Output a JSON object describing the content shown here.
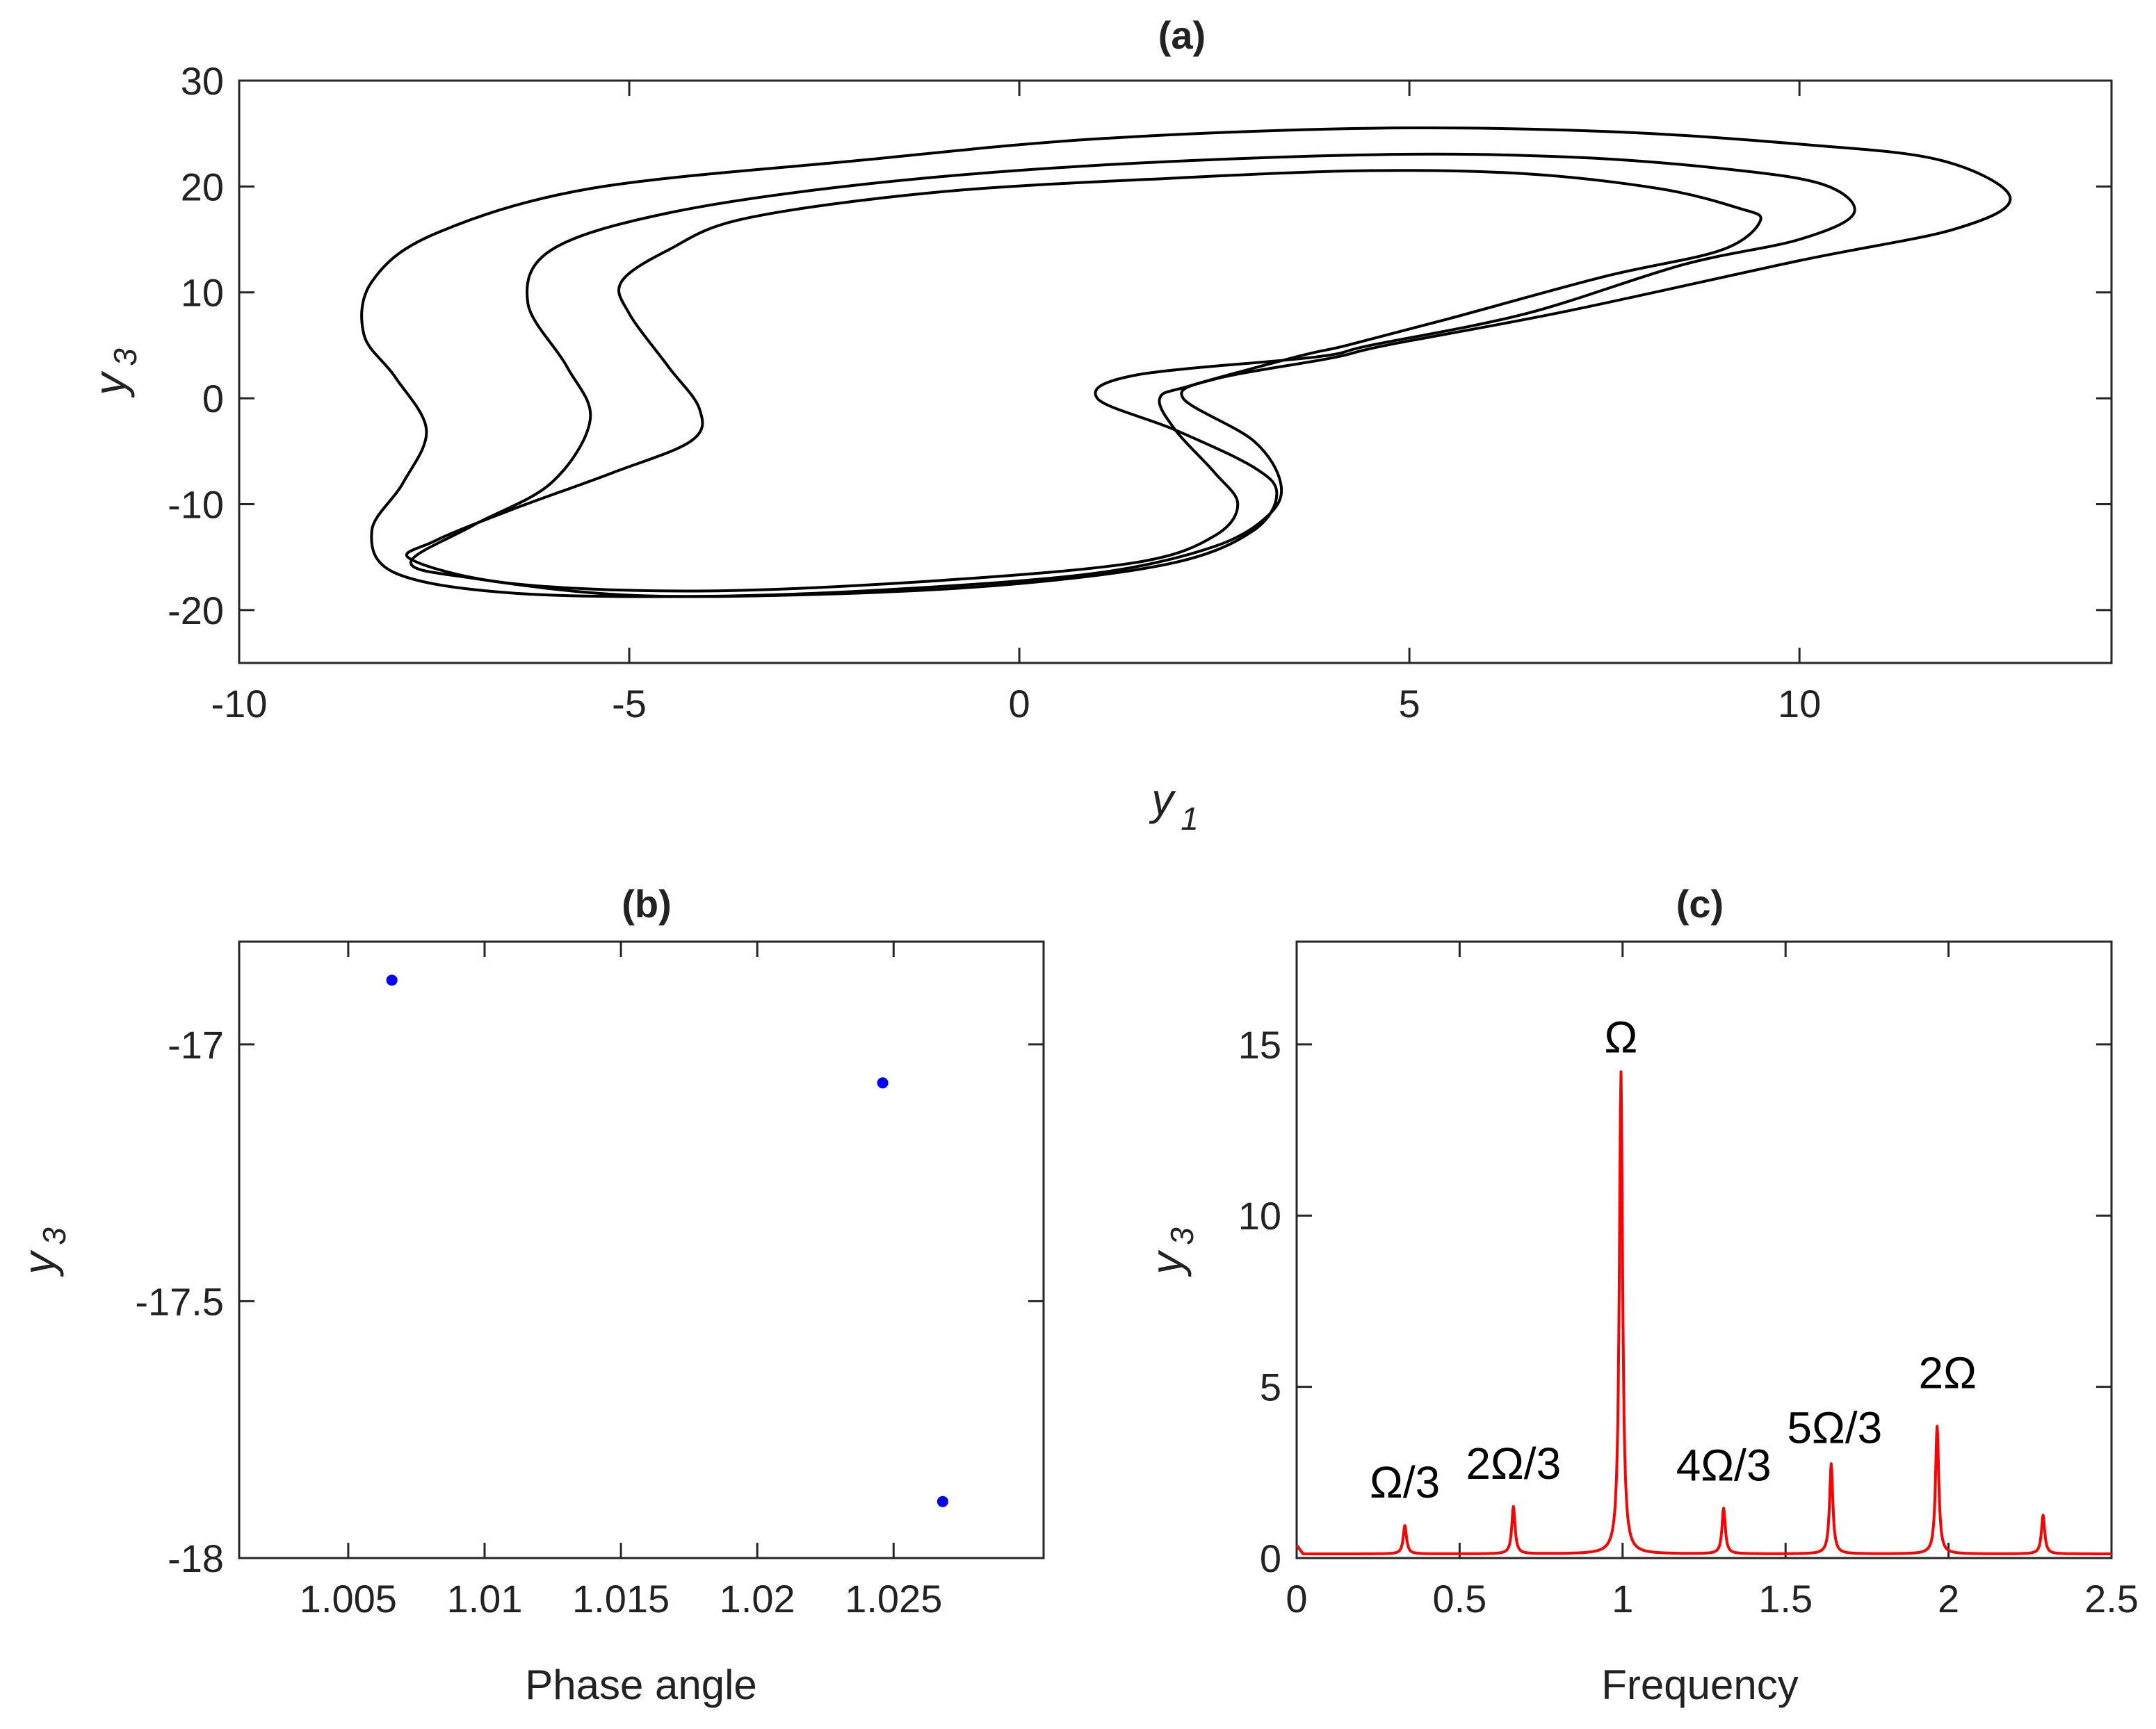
{
  "chart_data": [
    {
      "id": "a",
      "type": "line",
      "title": "(a)",
      "xlabel": "y",
      "xlabel_sub": "1",
      "ylabel": "y",
      "ylabel_sub": "3",
      "xlim": [
        -10,
        14
      ],
      "ylim": [
        -25,
        30
      ],
      "xticks": [
        -10,
        -5,
        0,
        5,
        10
      ],
      "xtick_labels": [
        "-10",
        "-5",
        "0",
        "5",
        "10"
      ],
      "yticks": [
        30,
        20,
        10,
        0,
        -10,
        -20
      ],
      "ytick_labels": [
        "30",
        "20",
        "10",
        "0",
        "-10",
        "-20"
      ],
      "color": "#000000",
      "series": [
        {
          "name": "orbit loop 1",
          "points": [
            [
              4.5,
              25.5
            ],
            [
              7.5,
              25.2
            ],
            [
              10,
              24
            ],
            [
              11.8,
              22.5
            ],
            [
              12.7,
              19
            ],
            [
              12,
              16
            ],
            [
              10,
              13
            ],
            [
              7,
              8.2
            ],
            [
              4.7,
              5
            ],
            [
              4,
              3.8
            ],
            [
              2.5,
              1.8
            ],
            [
              2.1,
              0
            ],
            [
              3,
              -4
            ],
            [
              3.35,
              -8
            ],
            [
              3.2,
              -11
            ],
            [
              2.5,
              -14
            ],
            [
              1,
              -16.5
            ],
            [
              -1.5,
              -18
            ],
            [
              -4,
              -18.7
            ],
            [
              -6.5,
              -18.4
            ],
            [
              -8,
              -16.5
            ],
            [
              -8.3,
              -12.5
            ],
            [
              -7.9,
              -8
            ],
            [
              -7.6,
              -3
            ],
            [
              -8,
              2
            ],
            [
              -8.4,
              6
            ],
            [
              -8.3,
              11
            ],
            [
              -7.5,
              15.5
            ],
            [
              -5.5,
              19.8
            ],
            [
              -2,
              22.5
            ],
            [
              1,
              24.5
            ],
            [
              4.5,
              25.5
            ]
          ]
        },
        {
          "name": "orbit loop 2",
          "points": [
            [
              4.5,
              23
            ],
            [
              7,
              22.8
            ],
            [
              9,
              21.7
            ],
            [
              10.3,
              20.2
            ],
            [
              10.7,
              17.5
            ],
            [
              10,
              15
            ],
            [
              8.5,
              12.6
            ],
            [
              6.5,
              8
            ],
            [
              4.5,
              5
            ],
            [
              3.8,
              3.9
            ],
            [
              1.5,
              2.2
            ],
            [
              1,
              0
            ],
            [
              2,
              -3
            ],
            [
              3,
              -6.5
            ],
            [
              3.3,
              -9
            ],
            [
              3,
              -12.5
            ],
            [
              2,
              -15.5
            ],
            [
              0,
              -17.5
            ],
            [
              -2.5,
              -18.5
            ],
            [
              -5,
              -18.6
            ],
            [
              -7,
              -17
            ],
            [
              -7.8,
              -15.5
            ],
            [
              -7,
              -12
            ],
            [
              -6,
              -8
            ],
            [
              -5.5,
              -2
            ],
            [
              -5.8,
              3
            ],
            [
              -6.3,
              9
            ],
            [
              -6,
              14
            ],
            [
              -4.5,
              17.5
            ],
            [
              -2,
              20.2
            ],
            [
              1,
              22
            ],
            [
              4.5,
              23
            ]
          ]
        },
        {
          "name": "orbit loop 3",
          "points": [
            [
              4.5,
              21.5
            ],
            [
              6.5,
              21.2
            ],
            [
              8.2,
              19.8
            ],
            [
              9.2,
              18
            ],
            [
              9.5,
              16.8
            ],
            [
              9,
              14
            ],
            [
              7.5,
              11.5
            ],
            [
              5.5,
              7.5
            ],
            [
              4.2,
              5
            ],
            [
              3.6,
              4
            ],
            [
              2.2,
              1.2
            ],
            [
              1.8,
              0
            ],
            [
              2,
              -3
            ],
            [
              2.5,
              -7
            ],
            [
              2.8,
              -10
            ],
            [
              2.5,
              -13
            ],
            [
              1.5,
              -15.5
            ],
            [
              -1,
              -17.2
            ],
            [
              -4,
              -18.2
            ],
            [
              -6.5,
              -17.5
            ],
            [
              -7.8,
              -15.2
            ],
            [
              -7.5,
              -13.5
            ],
            [
              -6.5,
              -10.5
            ],
            [
              -5.2,
              -7
            ],
            [
              -4.2,
              -4
            ],
            [
              -4.1,
              -1
            ],
            [
              -4.5,
              3
            ],
            [
              -5,
              8
            ],
            [
              -5.1,
              11
            ],
            [
              -4.5,
              14
            ],
            [
              -3.5,
              17
            ],
            [
              -1,
              19.5
            ],
            [
              2,
              20.8
            ],
            [
              4.5,
              21.5
            ]
          ]
        }
      ]
    },
    {
      "id": "b",
      "type": "scatter",
      "title": "(b)",
      "xlabel": "Phase angle",
      "ylabel": "y",
      "ylabel_sub": "3",
      "xlim": [
        1.001,
        1.0305
      ],
      "ylim": [
        -18,
        -16.8
      ],
      "xticks": [
        1.005,
        1.01,
        1.015,
        1.02,
        1.025
      ],
      "xtick_labels": [
        "1.005",
        "1.01",
        "1.015",
        "1.02",
        "1.025"
      ],
      "yticks": [
        -17,
        -17.5,
        -18
      ],
      "ytick_labels": [
        "-17",
        "-17.5",
        "-18"
      ],
      "color": "#0000ff",
      "points": [
        [
          1.0066,
          -16.875
        ],
        [
          1.0246,
          -17.075
        ],
        [
          1.0268,
          -17.89
        ]
      ]
    },
    {
      "id": "c",
      "type": "line",
      "title": "(c)",
      "xlabel": "Frequency",
      "ylabel": "y",
      "ylabel_sub": "3",
      "xlim": [
        0,
        2.5
      ],
      "ylim": [
        0,
        18
      ],
      "xticks": [
        0,
        0.5,
        1,
        1.5,
        2,
        2.5
      ],
      "xtick_labels": [
        "0",
        "0.5",
        "1",
        "1.5",
        "2",
        "2.5"
      ],
      "yticks": [
        0,
        5,
        10,
        15
      ],
      "ytick_labels": [
        "0",
        "5",
        "10",
        "15"
      ],
      "color": "#ff0000",
      "baseline": 0.12,
      "peaks": [
        {
          "x": 0.332,
          "y": 0.95,
          "label": "Ω/3"
        },
        {
          "x": 0.665,
          "y": 1.5,
          "label": "2Ω/3"
        },
        {
          "x": 0.995,
          "y": 14.2,
          "label": "Ω"
        },
        {
          "x": 1.31,
          "y": 1.45,
          "label": "4Ω/3"
        },
        {
          "x": 1.64,
          "y": 2.75,
          "label": "5Ω/3"
        },
        {
          "x": 1.965,
          "y": 3.85,
          "label": "2Ω"
        },
        {
          "x": 2.29,
          "y": 1.25,
          "label": ""
        }
      ]
    }
  ]
}
